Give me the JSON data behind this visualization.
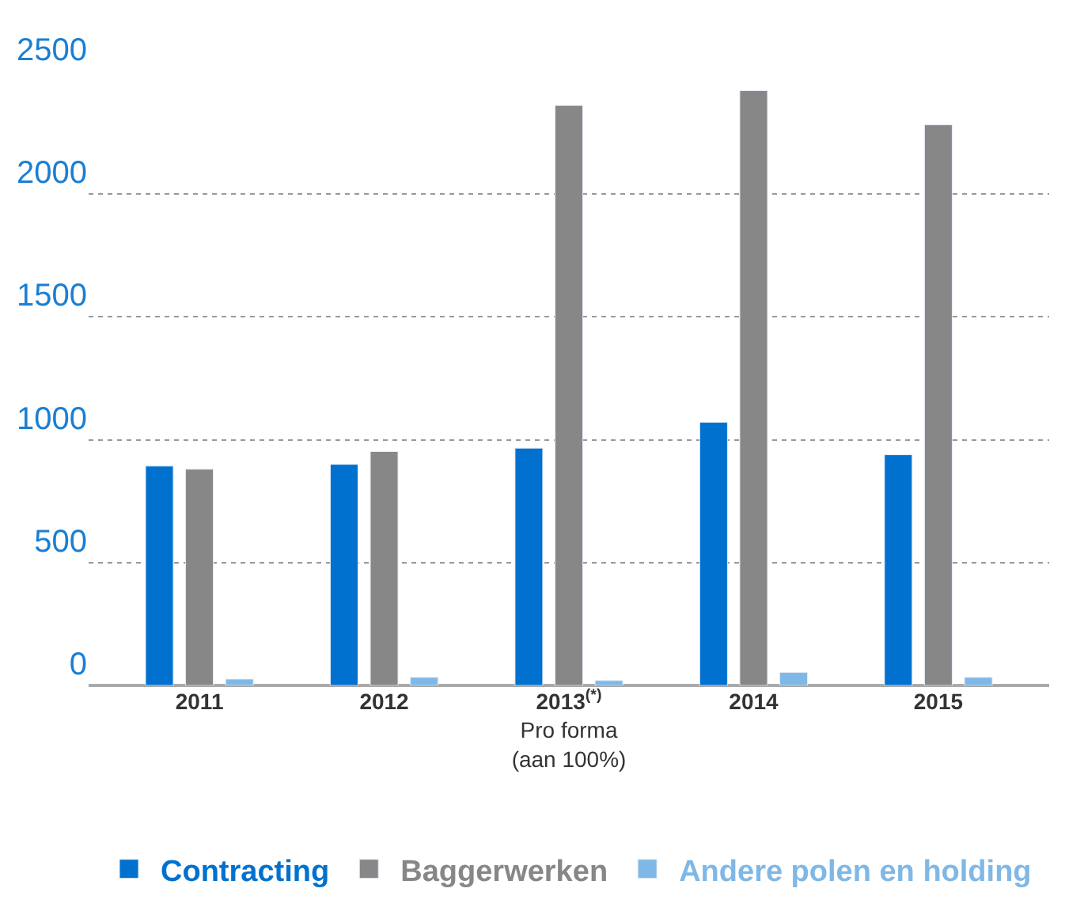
{
  "chart_data": {
    "type": "bar",
    "categories": [
      "2011",
      "2012",
      "2013$^{(*)}$\nPro forma\n(aan 100%)",
      "2014",
      "2015"
    ],
    "series": [
      {
        "name": "Contracting",
        "color": "#0071ce",
        "values": [
          893,
          900,
          966,
          1071,
          939
        ]
      },
      {
        "name": "Baggerwerken",
        "color": "#878787",
        "values": [
          880,
          952,
          2361,
          2421,
          2282
        ]
      },
      {
        "name": "Andere polen en holding",
        "color": "#7fb8e6",
        "values": [
          26,
          33,
          20,
          53,
          33
        ]
      }
    ],
    "ylim": [
      0,
      2500
    ],
    "yticks": [
      0,
      500,
      1000,
      1500,
      2000,
      2500
    ],
    "grid": "y",
    "legend": "bottom"
  }
}
